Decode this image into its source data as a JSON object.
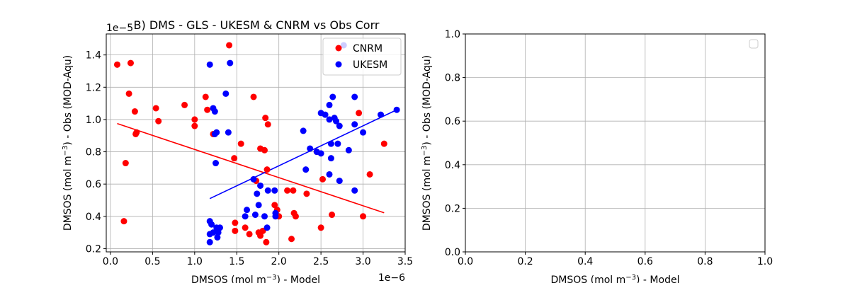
{
  "chart_data": [
    {
      "type": "scatter",
      "title": "B) DMS - GLS - UKESM & CNRM vs Obs Corr",
      "xlabel_main": "DMSOS (mol m",
      "xlabel_sup": "−3",
      "xlabel_tail": ") - Model",
      "ylabel_main": "DMSOS (mol m",
      "ylabel_sup": "−3",
      "ylabel_tail": ") - Obs (MOD-Aqu)",
      "x_offset": "1e−6",
      "y_offset": "1e−5",
      "xlim": [
        -0.05,
        3.5
      ],
      "ylim": [
        0.18,
        1.53
      ],
      "x_ticks": [
        0.0,
        0.5,
        1.0,
        1.5,
        2.0,
        2.5,
        3.0,
        3.5
      ],
      "x_tick_labels": [
        "0.0",
        "0.5",
        "1.0",
        "1.5",
        "2.0",
        "2.5",
        "3.0",
        "3.5"
      ],
      "y_ticks": [
        0.2,
        0.4,
        0.6,
        0.8,
        1.0,
        1.2,
        1.4
      ],
      "y_tick_labels": [
        "0.2",
        "0.4",
        "0.6",
        "0.8",
        "1.0",
        "1.2",
        "1.4"
      ],
      "grid": true,
      "legend": "top-right",
      "series": [
        {
          "name": "CNRM",
          "color": "#ff0000",
          "points": [
            [
              0.08,
              1.34
            ],
            [
              0.24,
              1.35
            ],
            [
              0.22,
              1.16
            ],
            [
              0.29,
              1.05
            ],
            [
              0.3,
              0.91
            ],
            [
              0.31,
              0.92
            ],
            [
              0.18,
              0.73
            ],
            [
              0.16,
              0.37
            ],
            [
              0.54,
              1.07
            ],
            [
              0.57,
              0.99
            ],
            [
              0.88,
              1.09
            ],
            [
              1.0,
              1.0
            ],
            [
              1.0,
              0.96
            ],
            [
              1.13,
              1.14
            ],
            [
              1.15,
              1.06
            ],
            [
              1.22,
              0.91
            ],
            [
              1.41,
              1.46
            ],
            [
              1.47,
              0.76
            ],
            [
              1.55,
              0.85
            ],
            [
              1.7,
              1.14
            ],
            [
              1.73,
              0.62
            ],
            [
              1.78,
              0.82
            ],
            [
              1.83,
              0.81
            ],
            [
              1.84,
              1.01
            ],
            [
              1.87,
              0.97
            ],
            [
              1.86,
              0.69
            ],
            [
              1.48,
              0.36
            ],
            [
              1.48,
              0.31
            ],
            [
              1.6,
              0.33
            ],
            [
              1.65,
              0.29
            ],
            [
              1.76,
              0.3
            ],
            [
              1.78,
              0.28
            ],
            [
              1.81,
              0.31
            ],
            [
              1.85,
              0.24
            ],
            [
              1.95,
              0.47
            ],
            [
              1.98,
              0.44
            ],
            [
              2.0,
              0.4
            ],
            [
              2.1,
              0.56
            ],
            [
              2.15,
              0.26
            ],
            [
              2.17,
              0.56
            ],
            [
              2.18,
              0.42
            ],
            [
              2.2,
              0.4
            ],
            [
              2.33,
              0.54
            ],
            [
              2.45,
              0.8
            ],
            [
              2.5,
              0.33
            ],
            [
              2.52,
              0.63
            ],
            [
              2.63,
              0.41
            ],
            [
              2.95,
              1.04
            ],
            [
              3.0,
              0.4
            ],
            [
              3.08,
              0.66
            ],
            [
              3.25,
              0.85
            ]
          ],
          "fit": [
            [
              0.08,
              0.975
            ],
            [
              3.25,
              0.422
            ]
          ]
        },
        {
          "name": "UKESM",
          "color": "#0000ff",
          "points": [
            [
              1.18,
              1.34
            ],
            [
              1.22,
              1.07
            ],
            [
              1.24,
              1.05
            ],
            [
              1.24,
              0.91
            ],
            [
              1.26,
              0.92
            ],
            [
              1.25,
              0.73
            ],
            [
              1.37,
              1.16
            ],
            [
              1.4,
              0.92
            ],
            [
              1.42,
              1.35
            ],
            [
              1.18,
              0.37
            ],
            [
              1.2,
              0.35
            ],
            [
              1.18,
              0.29
            ],
            [
              1.22,
              0.3
            ],
            [
              1.26,
              0.33
            ],
            [
              1.28,
              0.3
            ],
            [
              1.3,
              0.33
            ],
            [
              1.18,
              0.24
            ],
            [
              1.27,
              0.27
            ],
            [
              1.6,
              0.4
            ],
            [
              1.62,
              0.44
            ],
            [
              1.7,
              0.63
            ],
            [
              1.72,
              0.41
            ],
            [
              1.74,
              0.54
            ],
            [
              1.76,
              0.47
            ],
            [
              1.78,
              0.59
            ],
            [
              1.83,
              0.4
            ],
            [
              1.86,
              0.33
            ],
            [
              1.87,
              0.56
            ],
            [
              1.95,
              0.56
            ],
            [
              1.96,
              0.4
            ],
            [
              1.96,
              0.42
            ],
            [
              2.29,
              0.93
            ],
            [
              2.32,
              0.69
            ],
            [
              2.37,
              0.82
            ],
            [
              2.45,
              0.8
            ],
            [
              2.5,
              1.04
            ],
            [
              2.5,
              0.79
            ],
            [
              2.55,
              1.03
            ],
            [
              2.6,
              1.09
            ],
            [
              2.6,
              1.0
            ],
            [
              2.62,
              0.76
            ],
            [
              2.62,
              0.85
            ],
            [
              2.64,
              1.14
            ],
            [
              2.66,
              1.01
            ],
            [
              2.68,
              0.99
            ],
            [
              2.7,
              0.85
            ],
            [
              2.72,
              0.62
            ],
            [
              2.72,
              0.96
            ],
            [
              2.6,
              0.66
            ],
            [
              2.83,
              0.81
            ],
            [
              2.9,
              1.14
            ],
            [
              2.9,
              0.97
            ],
            [
              2.9,
              0.56
            ],
            [
              3.0,
              0.92
            ],
            [
              3.21,
              1.03
            ],
            [
              3.4,
              1.06
            ],
            [
              2.77,
              1.46
            ]
          ],
          "fit": [
            [
              1.18,
              0.51
            ],
            [
              3.4,
              1.06
            ]
          ]
        }
      ]
    },
    {
      "type": "scatter",
      "title": "",
      "xlabel_main": "DMSOS (mol m",
      "xlabel_sup": "−3",
      "xlabel_tail": ") - Model",
      "ylabel_main": "DMSOS (mol m",
      "ylabel_sup": "−3",
      "ylabel_tail": ") - Obs (MOD-Aqu)",
      "xlim": [
        0.0,
        1.0
      ],
      "ylim": [
        0.0,
        1.0
      ],
      "x_ticks": [
        0.0,
        0.2,
        0.4,
        0.6,
        0.8,
        1.0
      ],
      "x_tick_labels": [
        "0.0",
        "0.2",
        "0.4",
        "0.6",
        "0.8",
        "1.0"
      ],
      "y_ticks": [
        0.0,
        0.2,
        0.4,
        0.6,
        0.8,
        1.0
      ],
      "y_tick_labels": [
        "0.0",
        "0.2",
        "0.4",
        "0.6",
        "0.8",
        "1.0"
      ],
      "grid": true,
      "legend": "top-right",
      "series": []
    }
  ]
}
